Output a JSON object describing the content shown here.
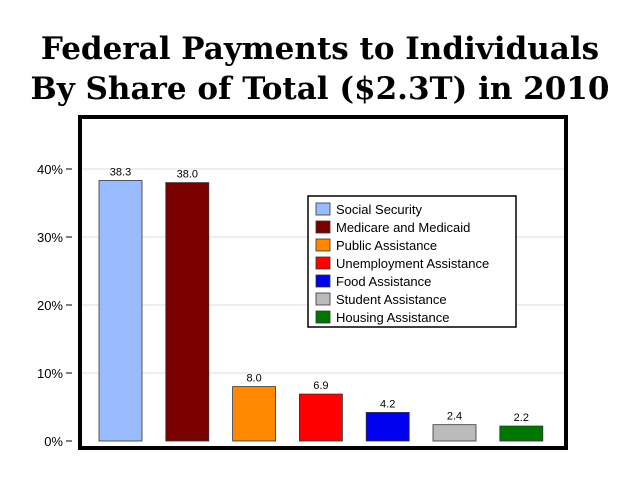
{
  "chart_data": {
    "type": "bar",
    "title_line1": "Federal Payments to Individuals",
    "title_line2": "By Share of Total ($2.3T) in 2010",
    "xlabel": "",
    "ylabel": "",
    "ylim": [
      0,
      40
    ],
    "y_ticks": [
      {
        "value": 0,
        "label": "0%"
      },
      {
        "value": 10,
        "label": "10%"
      },
      {
        "value": 20,
        "label": "20%"
      },
      {
        "value": 30,
        "label": "30%"
      },
      {
        "value": 40,
        "label": "40%"
      }
    ],
    "grid": true,
    "legend_position": "top-right",
    "categories": [
      "Social Security",
      "Medicare and Medicaid",
      "Public Assistance",
      "Unemployment Assistance",
      "Food Assistance",
      "Student Assistance",
      "Housing Assistance"
    ],
    "values": [
      38.3,
      38.0,
      8.0,
      6.9,
      4.2,
      2.4,
      2.2
    ],
    "value_labels": [
      "38.3",
      "38.0",
      "8.0",
      "6.9",
      "4.2",
      "2.4",
      "2.2"
    ],
    "colors": [
      "#99bbff",
      "#7a0000",
      "#ff8800",
      "#ff0000",
      "#0000ee",
      "#bbbbbb",
      "#007700"
    ]
  }
}
